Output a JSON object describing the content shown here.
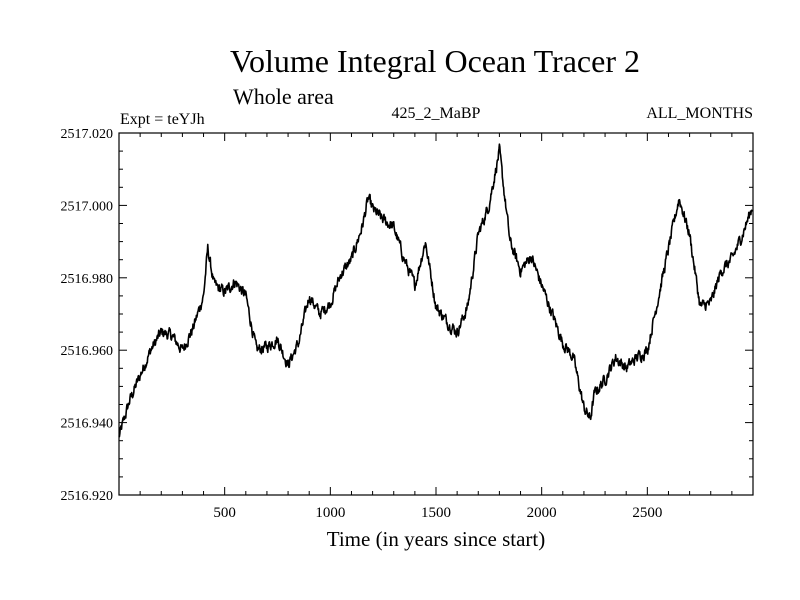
{
  "chart_data": {
    "type": "line",
    "title": "Volume Integral Ocean Tracer 2",
    "subtitle": "Whole area",
    "left_label": "Expt = teYJh",
    "center_label": "425_2_MaBP",
    "right_label": "ALL_MONTHS",
    "xlabel": "Time (in years since start)",
    "ylabel": "",
    "xlim": [
      0,
      3000
    ],
    "ylim": [
      2516.92,
      2517.02
    ],
    "x_ticks": [
      500,
      1000,
      1500,
      2000,
      2500
    ],
    "x_tick_labels": [
      "500",
      "1000",
      "1500",
      "2000",
      "2500"
    ],
    "y_ticks": [
      2516.92,
      2516.94,
      2516.96,
      2516.98,
      2517.0,
      2517.02
    ],
    "y_tick_labels": [
      "2516.920",
      "2516.940",
      "2516.960",
      "2516.980",
      "2517.000",
      "2517.020"
    ],
    "grid": false,
    "series": [
      {
        "name": "Volume Integral Ocean Tracer 2",
        "x": [
          0,
          50,
          100,
          150,
          200,
          250,
          300,
          350,
          400,
          420,
          450,
          500,
          550,
          600,
          650,
          700,
          750,
          800,
          850,
          900,
          950,
          1000,
          1050,
          1100,
          1150,
          1180,
          1200,
          1250,
          1300,
          1350,
          1400,
          1450,
          1500,
          1550,
          1600,
          1650,
          1700,
          1750,
          1800,
          1850,
          1900,
          1950,
          2000,
          2050,
          2100,
          2150,
          2200,
          2230,
          2250,
          2300,
          2350,
          2400,
          2450,
          2500,
          2550,
          2600,
          2650,
          2700,
          2750,
          2800,
          2850,
          2900,
          2950,
          3000
        ],
        "values": [
          2516.936,
          2516.946,
          2516.953,
          2516.96,
          2516.965,
          2516.964,
          2516.96,
          2516.966,
          2516.975,
          2516.988,
          2516.978,
          2516.976,
          2516.979,
          2516.975,
          2516.96,
          2516.961,
          2516.963,
          2516.956,
          2516.962,
          2516.975,
          2516.97,
          2516.973,
          2516.981,
          2516.985,
          2516.994,
          2517.002,
          2516.999,
          2516.996,
          2516.994,
          2516.985,
          2516.978,
          2516.99,
          2516.972,
          2516.968,
          2516.965,
          2516.972,
          2516.992,
          2517.0,
          2517.015,
          2516.99,
          2516.982,
          2516.986,
          2516.978,
          2516.97,
          2516.962,
          2516.958,
          2516.944,
          2516.941,
          2516.948,
          2516.952,
          2516.958,
          2516.955,
          2516.958,
          2516.96,
          2516.974,
          2516.988,
          2517.002,
          2516.992,
          2516.972,
          2516.973,
          2516.982,
          2516.985,
          2516.992,
          2517.0
        ]
      }
    ]
  }
}
